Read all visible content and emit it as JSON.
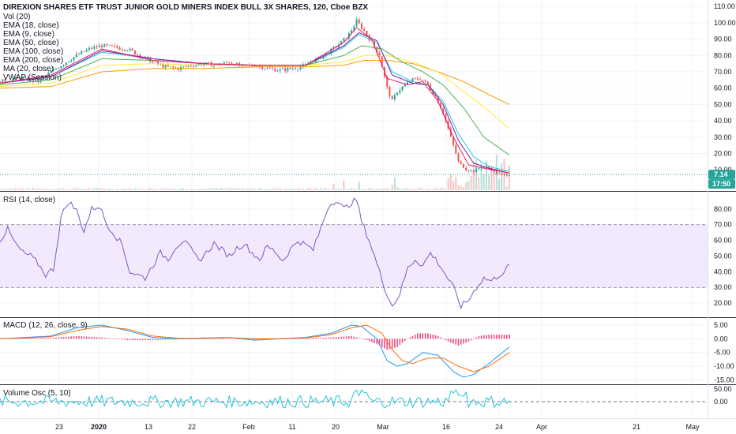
{
  "header": {
    "title": "DIREXION SHARES ETF TRUST JUNIOR GOLD MINERS INDEX BULL 3X SHARES, 120, Cboe BZX"
  },
  "main_legend": [
    "Vol (20)",
    "EMA (18, close)",
    "EMA (9, close)",
    "EMA (50, close)",
    "EMA (100, close)",
    "EMA (200, close)",
    "MA (20, close)",
    "VWAP (Session)"
  ],
  "price_badges": {
    "last": "7.14",
    "countdown": "17:50"
  },
  "rsi_label": "RSI (14, close)",
  "macd_label": "MACD (12, 26, close, 9)",
  "volosc_label": "Volume Osc (5, 10)",
  "colors": {
    "up": "#26a69a",
    "down": "#ef5350",
    "ema9": "#e91e63",
    "ema18": "#26c6da",
    "ema50": "#4caf50",
    "ema100": "#ffeb3b",
    "ema200": "#ff9800",
    "ma20": "#7b1fa2",
    "rsi": "#7e57c2",
    "macd": "#2196f3",
    "signal": "#ff6d00",
    "hist": "#e91e63",
    "volosc": "#26c6da",
    "badge": "#26a69a"
  },
  "chart_data": [
    {
      "type": "candlestick",
      "panel": "price",
      "y_ticks": [
        "110.00",
        "100.00",
        "90.00",
        "80.00",
        "70.00",
        "60.00",
        "50.00",
        "40.00",
        "30.00",
        "20.00",
        "10.00"
      ],
      "ylim": [
        -2,
        113
      ],
      "x_ticks": [
        "23",
        "2020",
        "13",
        "22",
        "Feb",
        "11",
        "20",
        "Mar",
        "16",
        "24",
        "Apr",
        "21",
        "May"
      ],
      "close_points": [
        [
          0,
          64
        ],
        [
          8,
          66
        ],
        [
          15,
          64
        ],
        [
          20,
          70
        ],
        [
          25,
          75
        ],
        [
          30,
          80
        ],
        [
          35,
          84
        ],
        [
          40,
          86
        ],
        [
          45,
          85
        ],
        [
          50,
          84
        ],
        [
          55,
          80
        ],
        [
          60,
          76
        ],
        [
          65,
          73
        ],
        [
          70,
          72
        ],
        [
          75,
          74
        ],
        [
          80,
          75
        ],
        [
          85,
          74
        ],
        [
          90,
          76
        ],
        [
          95,
          73
        ],
        [
          100,
          74
        ],
        [
          105,
          72
        ],
        [
          110,
          71
        ],
        [
          115,
          72
        ],
        [
          120,
          74
        ],
        [
          125,
          78
        ],
        [
          130,
          83
        ],
        [
          134,
          88
        ],
        [
          137,
          93
        ],
        [
          140,
          101
        ],
        [
          143,
          95
        ],
        [
          146,
          88
        ],
        [
          149,
          80
        ],
        [
          152,
          60
        ],
        [
          154,
          52
        ],
        [
          156,
          58
        ],
        [
          159,
          62
        ],
        [
          162,
          65
        ],
        [
          165,
          66
        ],
        [
          168,
          62
        ],
        [
          171,
          55
        ],
        [
          174,
          45
        ],
        [
          177,
          30
        ],
        [
          180,
          15
        ],
        [
          183,
          10
        ],
        [
          186,
          9
        ],
        [
          189,
          12
        ],
        [
          192,
          11
        ],
        [
          195,
          8
        ],
        [
          198,
          7
        ],
        [
          200,
          7.14
        ]
      ],
      "ema9": [
        [
          0,
          63
        ],
        [
          20,
          68
        ],
        [
          40,
          84
        ],
        [
          60,
          77
        ],
        [
          80,
          75
        ],
        [
          100,
          74
        ],
        [
          120,
          74
        ],
        [
          135,
          88
        ],
        [
          140,
          97
        ],
        [
          146,
          90
        ],
        [
          152,
          66
        ],
        [
          160,
          62
        ],
        [
          166,
          64
        ],
        [
          172,
          52
        ],
        [
          178,
          30
        ],
        [
          184,
          13
        ],
        [
          190,
          11
        ],
        [
          200,
          8
        ]
      ],
      "ema18": [
        [
          0,
          63
        ],
        [
          20,
          67
        ],
        [
          40,
          82
        ],
        [
          60,
          78
        ],
        [
          80,
          75
        ],
        [
          100,
          74
        ],
        [
          120,
          74
        ],
        [
          135,
          85
        ],
        [
          141,
          93
        ],
        [
          148,
          88
        ],
        [
          154,
          70
        ],
        [
          162,
          64
        ],
        [
          168,
          62
        ],
        [
          174,
          52
        ],
        [
          180,
          32
        ],
        [
          186,
          18
        ],
        [
          192,
          12
        ],
        [
          200,
          9
        ]
      ],
      "ema50": [
        [
          0,
          62
        ],
        [
          20,
          65
        ],
        [
          40,
          78
        ],
        [
          60,
          77
        ],
        [
          80,
          75
        ],
        [
          100,
          74
        ],
        [
          120,
          74
        ],
        [
          135,
          80
        ],
        [
          142,
          86
        ],
        [
          150,
          84
        ],
        [
          158,
          76
        ],
        [
          166,
          70
        ],
        [
          174,
          62
        ],
        [
          182,
          48
        ],
        [
          190,
          30
        ],
        [
          200,
          19
        ]
      ],
      "ema100": [
        [
          0,
          61
        ],
        [
          20,
          63
        ],
        [
          40,
          74
        ],
        [
          60,
          75
        ],
        [
          80,
          74
        ],
        [
          100,
          74
        ],
        [
          120,
          74
        ],
        [
          135,
          76
        ],
        [
          143,
          80
        ],
        [
          152,
          80
        ],
        [
          162,
          76
        ],
        [
          172,
          70
        ],
        [
          182,
          58
        ],
        [
          192,
          46
        ],
        [
          200,
          35
        ]
      ],
      "ema200": [
        [
          0,
          60
        ],
        [
          20,
          61
        ],
        [
          40,
          70
        ],
        [
          60,
          72
        ],
        [
          80,
          72
        ],
        [
          100,
          73
        ],
        [
          120,
          73
        ],
        [
          135,
          74
        ],
        [
          143,
          77
        ],
        [
          152,
          77
        ],
        [
          162,
          75
        ],
        [
          172,
          70
        ],
        [
          182,
          64
        ],
        [
          192,
          56
        ],
        [
          200,
          50
        ]
      ],
      "ma20": [
        [
          0,
          63
        ],
        [
          20,
          67
        ],
        [
          40,
          83
        ],
        [
          60,
          78
        ],
        [
          80,
          75
        ],
        [
          100,
          74
        ],
        [
          120,
          74
        ],
        [
          135,
          86
        ],
        [
          141,
          94
        ],
        [
          148,
          89
        ],
        [
          154,
          68
        ],
        [
          162,
          63
        ],
        [
          168,
          62
        ],
        [
          174,
          50
        ],
        [
          180,
          28
        ],
        [
          186,
          14
        ],
        [
          192,
          11
        ],
        [
          200,
          8
        ]
      ],
      "last_price": 7.14
    },
    {
      "type": "line",
      "panel": "rsi",
      "name": "RSI (14, close)",
      "y_ticks": [
        "80.00",
        "70.00",
        "60.00",
        "50.00",
        "40.00",
        "30.00",
        "20.00"
      ],
      "ylim": [
        12,
        90
      ],
      "band": [
        30,
        70
      ],
      "values": [
        [
          0,
          60
        ],
        [
          3,
          67
        ],
        [
          6,
          58
        ],
        [
          9,
          52
        ],
        [
          12,
          50
        ],
        [
          15,
          45
        ],
        [
          18,
          38
        ],
        [
          21,
          42
        ],
        [
          24,
          75
        ],
        [
          27,
          85
        ],
        [
          30,
          79
        ],
        [
          33,
          66
        ],
        [
          36,
          80
        ],
        [
          39,
          82
        ],
        [
          42,
          70
        ],
        [
          45,
          64
        ],
        [
          48,
          57
        ],
        [
          51,
          40
        ],
        [
          54,
          38
        ],
        [
          57,
          36
        ],
        [
          60,
          44
        ],
        [
          63,
          52
        ],
        [
          66,
          48
        ],
        [
          69,
          56
        ],
        [
          72,
          60
        ],
        [
          75,
          54
        ],
        [
          78,
          47
        ],
        [
          81,
          52
        ],
        [
          84,
          58
        ],
        [
          87,
          54
        ],
        [
          90,
          50
        ],
        [
          93,
          55
        ],
        [
          96,
          58
        ],
        [
          99,
          52
        ],
        [
          102,
          48
        ],
        [
          105,
          56
        ],
        [
          108,
          53
        ],
        [
          111,
          47
        ],
        [
          114,
          54
        ],
        [
          117,
          60
        ],
        [
          120,
          57
        ],
        [
          123,
          54
        ],
        [
          126,
          68
        ],
        [
          129,
          82
        ],
        [
          132,
          86
        ],
        [
          135,
          80
        ],
        [
          138,
          84
        ],
        [
          140,
          86
        ],
        [
          142,
          72
        ],
        [
          145,
          60
        ],
        [
          148,
          45
        ],
        [
          151,
          30
        ],
        [
          154,
          18
        ],
        [
          157,
          26
        ],
        [
          160,
          42
        ],
        [
          163,
          48
        ],
        [
          166,
          44
        ],
        [
          169,
          52
        ],
        [
          172,
          46
        ],
        [
          175,
          38
        ],
        [
          178,
          30
        ],
        [
          181,
          18
        ],
        [
          184,
          22
        ],
        [
          187,
          30
        ],
        [
          190,
          36
        ],
        [
          193,
          34
        ],
        [
          196,
          38
        ],
        [
          198,
          40
        ],
        [
          200,
          44
        ]
      ]
    },
    {
      "type": "line",
      "panel": "macd",
      "name": "MACD (12, 26, close, 9)",
      "y_ticks": [
        "5.00",
        "0.00",
        "-5.00",
        "-10.00",
        "-15.00"
      ],
      "ylim": [
        -16,
        7
      ],
      "macd": [
        [
          0,
          0
        ],
        [
          10,
          0.5
        ],
        [
          20,
          1
        ],
        [
          30,
          4
        ],
        [
          40,
          5
        ],
        [
          50,
          3
        ],
        [
          60,
          0.5
        ],
        [
          70,
          0
        ],
        [
          80,
          0.3
        ],
        [
          90,
          0.5
        ],
        [
          100,
          -0.5
        ],
        [
          110,
          0
        ],
        [
          120,
          0.5
        ],
        [
          130,
          2
        ],
        [
          138,
          5
        ],
        [
          142,
          4.5
        ],
        [
          148,
          0
        ],
        [
          152,
          -8
        ],
        [
          156,
          -10
        ],
        [
          160,
          -9
        ],
        [
          166,
          -5
        ],
        [
          172,
          -6
        ],
        [
          178,
          -12
        ],
        [
          182,
          -14
        ],
        [
          186,
          -13
        ],
        [
          192,
          -9
        ],
        [
          200,
          -3
        ]
      ],
      "signal": [
        [
          0,
          0
        ],
        [
          10,
          0.3
        ],
        [
          20,
          0.8
        ],
        [
          30,
          3
        ],
        [
          40,
          4.5
        ],
        [
          50,
          3.5
        ],
        [
          60,
          1
        ],
        [
          70,
          0.2
        ],
        [
          80,
          0.2
        ],
        [
          90,
          0.4
        ],
        [
          100,
          0
        ],
        [
          110,
          0
        ],
        [
          120,
          0.3
        ],
        [
          130,
          1.5
        ],
        [
          138,
          4
        ],
        [
          144,
          5
        ],
        [
          150,
          2
        ],
        [
          154,
          -4
        ],
        [
          158,
          -8
        ],
        [
          162,
          -9
        ],
        [
          168,
          -7
        ],
        [
          174,
          -7
        ],
        [
          180,
          -10
        ],
        [
          186,
          -12
        ],
        [
          192,
          -10
        ],
        [
          200,
          -5
        ]
      ],
      "hist": [
        [
          0,
          0.2
        ],
        [
          20,
          0.3
        ],
        [
          30,
          1
        ],
        [
          40,
          0.5
        ],
        [
          50,
          -0.5
        ],
        [
          60,
          -0.5
        ],
        [
          80,
          0.1
        ],
        [
          100,
          -0.3
        ],
        [
          120,
          0.2
        ],
        [
          130,
          0.5
        ],
        [
          138,
          1
        ],
        [
          144,
          -0.5
        ],
        [
          148,
          -2
        ],
        [
          152,
          -4
        ],
        [
          156,
          -3
        ],
        [
          160,
          0
        ],
        [
          164,
          2
        ],
        [
          168,
          2
        ],
        [
          172,
          1
        ],
        [
          176,
          -1
        ],
        [
          180,
          -2.5
        ],
        [
          184,
          -1
        ],
        [
          188,
          1
        ],
        [
          192,
          1.5
        ],
        [
          200,
          1.5
        ]
      ]
    },
    {
      "type": "line",
      "panel": "volume_osc",
      "name": "Volume Osc (5, 10)",
      "y_ticks": [
        "50.00",
        "0.00"
      ],
      "ylim": [
        -60,
        60
      ],
      "dashed_level": 0
    }
  ]
}
